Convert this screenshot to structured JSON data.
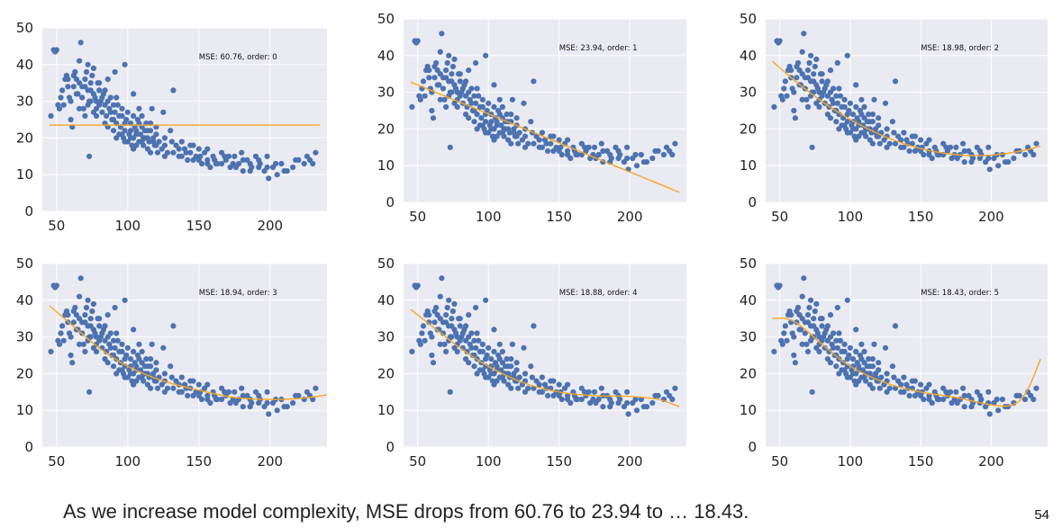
{
  "caption": "As we increase model complexity, MSE drops from 60.76 to 23.94 to … 18.43.",
  "page_number": "54",
  "colors": {
    "points": "#4c72b0",
    "fit": "#f5a623",
    "plot_bg": "#eaeaf2",
    "grid": "#ffffff"
  },
  "chart_data": [
    {
      "type": "scatter",
      "annotation": "MSE: 60.76, order: 0",
      "xlim": [
        40,
        240
      ],
      "ylim": [
        0,
        50
      ],
      "xticks": [
        "50",
        "100",
        "150",
        "200"
      ],
      "yticks": [
        "0",
        "10",
        "20",
        "30",
        "40",
        "50"
      ],
      "fit": {
        "order": 0,
        "coef": [
          23.5
        ]
      }
    },
    {
      "type": "scatter",
      "annotation": "MSE: 23.94, order: 1",
      "xlim": [
        40,
        240
      ],
      "ylim": [
        0,
        50
      ],
      "xticks": [
        "50",
        "100",
        "150",
        "200"
      ],
      "yticks": [
        "0",
        "10",
        "20",
        "30",
        "40",
        "50"
      ],
      "fit": {
        "order": 1,
        "coef": [
          39.9,
          -0.158
        ]
      }
    },
    {
      "type": "scatter",
      "annotation": "MSE: 18.98, order: 2",
      "xlim": [
        40,
        240
      ],
      "ylim": [
        0,
        50
      ],
      "xticks": [
        "50",
        "100",
        "150",
        "200"
      ],
      "yticks": [
        "0",
        "10",
        "20",
        "30",
        "40",
        "50"
      ],
      "fit": {
        "order": 2,
        "coef": [
          56.9,
          -0.466,
          0.00123
        ]
      }
    },
    {
      "type": "scatter",
      "annotation": "MSE: 18.94, order: 3",
      "xlim": [
        40,
        240
      ],
      "ylim": [
        0,
        50
      ],
      "xticks": [
        "50",
        "100",
        "150",
        "200"
      ],
      "yticks": [
        "0",
        "10",
        "20",
        "30",
        "40",
        "50"
      ],
      "fit": {
        "points": [
          [
            45,
            38.5
          ],
          [
            60,
            33.5
          ],
          [
            80,
            27
          ],
          [
            100,
            22
          ],
          [
            125,
            18
          ],
          [
            150,
            15.5
          ],
          [
            175,
            13.5
          ],
          [
            200,
            13
          ],
          [
            220,
            13.2
          ],
          [
            240,
            14.2
          ]
        ]
      }
    },
    {
      "type": "scatter",
      "annotation": "MSE: 18.88, order: 4",
      "xlim": [
        40,
        240
      ],
      "ylim": [
        0,
        50
      ],
      "xticks": [
        "50",
        "100",
        "150",
        "200"
      ],
      "yticks": [
        "0",
        "10",
        "20",
        "30",
        "40",
        "50"
      ],
      "fit": {
        "points": [
          [
            45,
            37.5
          ],
          [
            60,
            33
          ],
          [
            80,
            27
          ],
          [
            100,
            22
          ],
          [
            125,
            17.5
          ],
          [
            150,
            15
          ],
          [
            175,
            14
          ],
          [
            200,
            13.8
          ],
          [
            220,
            13
          ],
          [
            235,
            11
          ]
        ]
      }
    },
    {
      "type": "scatter",
      "annotation": "MSE: 18.43, order: 5",
      "xlim": [
        40,
        240
      ],
      "ylim": [
        0,
        50
      ],
      "xticks": [
        "50",
        "100",
        "150",
        "200"
      ],
      "yticks": [
        "0",
        "10",
        "20",
        "30",
        "40",
        "50"
      ],
      "fit": {
        "points": [
          [
            45,
            35
          ],
          [
            55,
            35
          ],
          [
            65,
            33
          ],
          [
            80,
            28
          ],
          [
            100,
            22
          ],
          [
            125,
            17.5
          ],
          [
            150,
            15
          ],
          [
            175,
            13.5
          ],
          [
            200,
            11.5
          ],
          [
            215,
            11.5
          ],
          [
            225,
            15
          ],
          [
            235,
            24
          ]
        ]
      }
    }
  ],
  "scatter_points": [
    [
      46,
      26
    ],
    [
      48,
      44
    ],
    [
      49,
      43.5
    ],
    [
      50,
      44
    ],
    [
      51,
      29
    ],
    [
      52,
      28
    ],
    [
      53,
      31
    ],
    [
      54,
      33
    ],
    [
      55,
      29
    ],
    [
      56,
      36
    ],
    [
      57,
      37
    ],
    [
      58,
      34
    ],
    [
      59,
      31
    ],
    [
      60,
      25
    ],
    [
      61,
      23
    ],
    [
      62,
      34
    ],
    [
      63,
      38
    ],
    [
      64,
      36
    ],
    [
      65,
      32
    ],
    [
      66,
      35
    ],
    [
      67,
      46
    ],
    [
      68,
      31
    ],
    [
      69,
      28
    ],
    [
      70,
      34
    ],
    [
      71,
      38
    ],
    [
      72,
      40
    ],
    [
      73,
      30
    ],
    [
      74,
      33
    ],
    [
      75,
      37
    ],
    [
      76,
      39
    ],
    [
      77,
      31
    ],
    [
      78,
      28
    ],
    [
      79,
      35
    ],
    [
      80,
      33
    ],
    [
      81,
      30
    ],
    [
      82,
      27
    ],
    [
      83,
      32
    ],
    [
      84,
      29
    ],
    [
      85,
      26
    ],
    [
      86,
      36
    ],
    [
      87,
      28
    ],
    [
      88,
      31
    ],
    [
      89,
      25
    ],
    [
      90,
      22
    ],
    [
      91,
      27
    ],
    [
      92,
      24
    ],
    [
      93,
      29
    ],
    [
      94,
      21
    ],
    [
      95,
      23
    ],
    [
      96,
      26
    ],
    [
      97,
      20
    ],
    [
      98,
      22
    ],
    [
      99,
      25
    ],
    [
      100,
      19
    ],
    [
      101,
      21
    ],
    [
      102,
      24
    ],
    [
      103,
      18
    ],
    [
      104,
      20
    ],
    [
      105,
      23
    ],
    [
      106,
      22
    ],
    [
      107,
      25
    ],
    [
      108,
      19
    ],
    [
      109,
      21
    ],
    [
      110,
      26
    ],
    [
      111,
      18
    ],
    [
      112,
      20
    ],
    [
      113,
      24
    ],
    [
      114,
      17
    ],
    [
      115,
      19
    ],
    [
      116,
      22
    ],
    [
      117,
      28
    ],
    [
      118,
      20
    ],
    [
      119,
      18
    ],
    [
      120,
      21
    ],
    [
      122,
      19
    ],
    [
      124,
      17
    ],
    [
      126,
      20
    ],
    [
      128,
      16
    ],
    [
      130,
      22
    ],
    [
      132,
      33
    ],
    [
      134,
      18
    ],
    [
      136,
      15
    ],
    [
      138,
      19
    ],
    [
      140,
      17
    ],
    [
      142,
      14
    ],
    [
      144,
      16
    ],
    [
      146,
      18
    ],
    [
      148,
      15
    ],
    [
      150,
      17
    ],
    [
      152,
      13
    ],
    [
      154,
      16
    ],
    [
      156,
      14
    ],
    [
      158,
      12
    ],
    [
      160,
      15
    ],
    [
      163,
      13
    ],
    [
      166,
      16
    ],
    [
      169,
      14
    ],
    [
      172,
      12
    ],
    [
      175,
      15
    ],
    [
      178,
      13
    ],
    [
      181,
      11
    ],
    [
      184,
      14
    ],
    [
      187,
      12
    ],
    [
      190,
      15
    ],
    [
      193,
      13
    ],
    [
      196,
      11
    ],
    [
      199,
      9
    ],
    [
      202,
      12
    ],
    [
      205,
      10
    ],
    [
      208,
      13
    ],
    [
      212,
      11
    ],
    [
      216,
      12
    ],
    [
      220,
      14
    ],
    [
      224,
      13
    ],
    [
      228,
      14
    ],
    [
      232,
      16
    ],
    [
      58,
      36
    ],
    [
      62,
      37
    ],
    [
      66,
      41
    ],
    [
      70,
      36
    ],
    [
      74,
      35
    ],
    [
      76,
      32
    ],
    [
      78,
      30
    ],
    [
      84,
      33
    ],
    [
      86,
      30
    ],
    [
      88,
      27
    ],
    [
      90,
      29
    ],
    [
      92,
      31
    ],
    [
      94,
      26
    ],
    [
      96,
      28
    ],
    [
      98,
      24
    ],
    [
      100,
      27
    ],
    [
      102,
      22
    ],
    [
      104,
      26
    ],
    [
      106,
      21
    ],
    [
      108,
      28
    ],
    [
      110,
      23
    ],
    [
      112,
      22
    ],
    [
      114,
      20
    ],
    [
      116,
      24
    ],
    [
      118,
      19
    ],
    [
      120,
      23
    ],
    [
      60,
      30
    ],
    [
      64,
      32
    ],
    [
      68,
      34
    ],
    [
      72,
      29
    ],
    [
      76,
      27
    ],
    [
      80,
      35
    ],
    [
      82,
      31
    ],
    [
      66,
      28
    ],
    [
      72,
      33
    ],
    [
      78,
      26
    ],
    [
      84,
      24
    ],
    [
      90,
      25
    ],
    [
      96,
      21
    ],
    [
      102,
      20
    ],
    [
      108,
      24
    ],
    [
      114,
      22
    ],
    [
      120,
      18
    ],
    [
      126,
      18
    ],
    [
      132,
      16
    ],
    [
      138,
      15
    ],
    [
      144,
      18
    ],
    [
      150,
      14
    ],
    [
      156,
      17
    ],
    [
      162,
      13
    ],
    [
      168,
      15
    ],
    [
      174,
      13
    ],
    [
      180,
      16
    ],
    [
      186,
      13
    ],
    [
      192,
      12
    ],
    [
      198,
      15
    ],
    [
      204,
      13
    ],
    [
      210,
      11
    ],
    [
      218,
      14
    ],
    [
      226,
      15
    ],
    [
      230,
      13
    ],
    [
      106,
      18
    ],
    [
      111,
      20
    ],
    [
      116,
      16
    ],
    [
      121,
      16
    ],
    [
      126,
      15
    ],
    [
      131,
      19
    ],
    [
      136,
      17
    ],
    [
      141,
      16
    ],
    [
      146,
      14
    ],
    [
      151,
      15
    ],
    [
      156,
      13
    ],
    [
      161,
      14
    ],
    [
      166,
      13
    ],
    [
      171,
      15
    ],
    [
      176,
      12
    ],
    [
      181,
      14
    ],
    [
      186,
      11
    ],
    [
      192,
      14
    ],
    [
      198,
      12
    ],
    [
      70,
      26
    ],
    [
      74,
      30
    ],
    [
      80,
      29
    ],
    [
      86,
      23
    ],
    [
      92,
      20
    ],
    [
      98,
      19
    ],
    [
      104,
      17
    ],
    [
      110,
      19
    ],
    [
      73,
      15
    ],
    [
      91,
      38
    ],
    [
      98,
      40
    ],
    [
      104,
      32
    ],
    [
      125,
      27
    ]
  ]
}
